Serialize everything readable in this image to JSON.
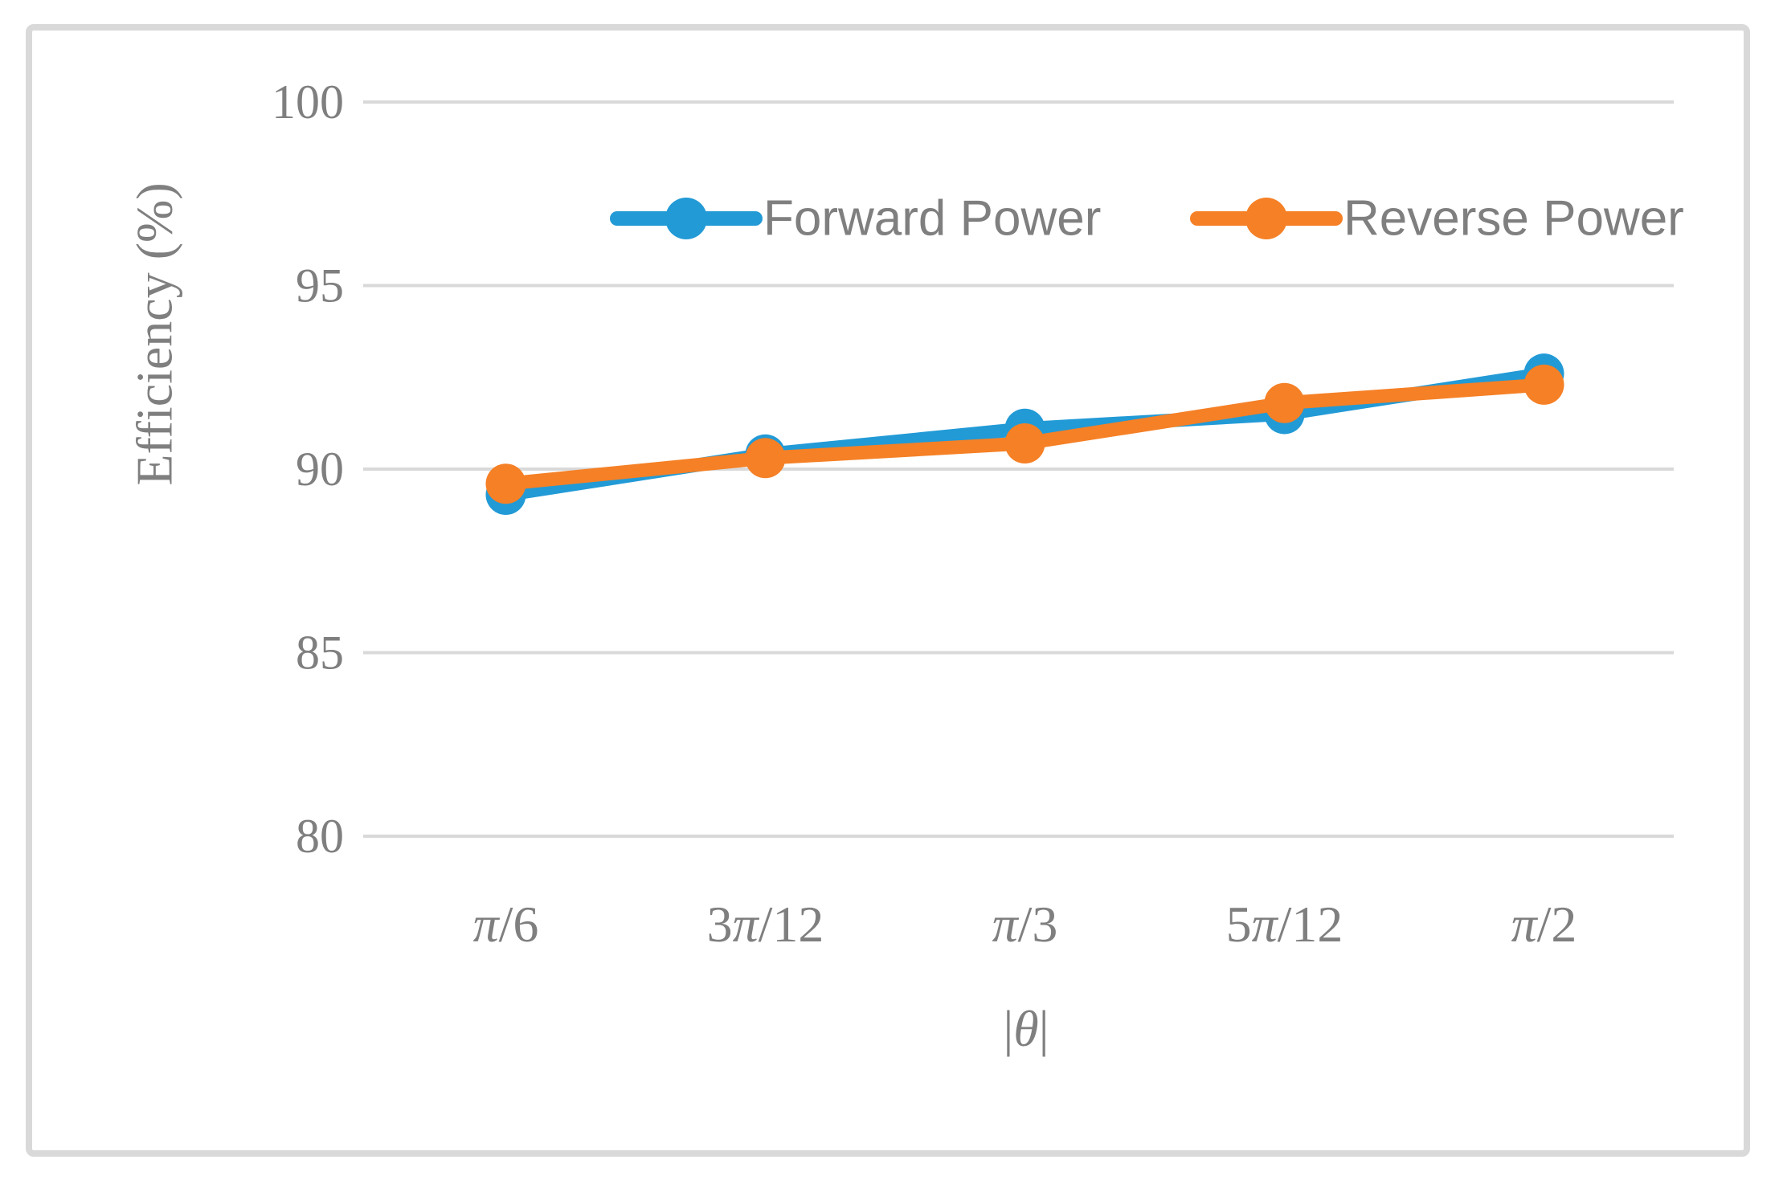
{
  "figure": {
    "background": "#FFFFFF",
    "border_color": "#D9D9D9"
  },
  "chart_data": {
    "type": "line",
    "title": "",
    "categories": [
      "π/6",
      "3π/12",
      "π/3",
      "5π/12",
      "π/2"
    ],
    "xlabel": "|θ|",
    "ylabel": "Efficiency (%)",
    "ylim": [
      80,
      100
    ],
    "yticks": [
      100,
      95,
      90,
      85,
      80
    ],
    "grid": "horizontal-only",
    "gridline_color": "#D9D9D9",
    "tick_color": "#D9D9D9",
    "text_color": "#7F7F7F",
    "legend_position": "top-center-inside",
    "legend_entries": [
      "Forward Power",
      "Reverse Power"
    ],
    "series": [
      {
        "name": "Forward Power",
        "color": "#229AD6",
        "values": [
          89.3,
          90.4,
          91.1,
          91.5,
          92.6
        ]
      },
      {
        "name": "Reverse Power",
        "color": "#F58026",
        "values": [
          89.6,
          90.3,
          90.7,
          91.8,
          92.3
        ]
      }
    ]
  }
}
